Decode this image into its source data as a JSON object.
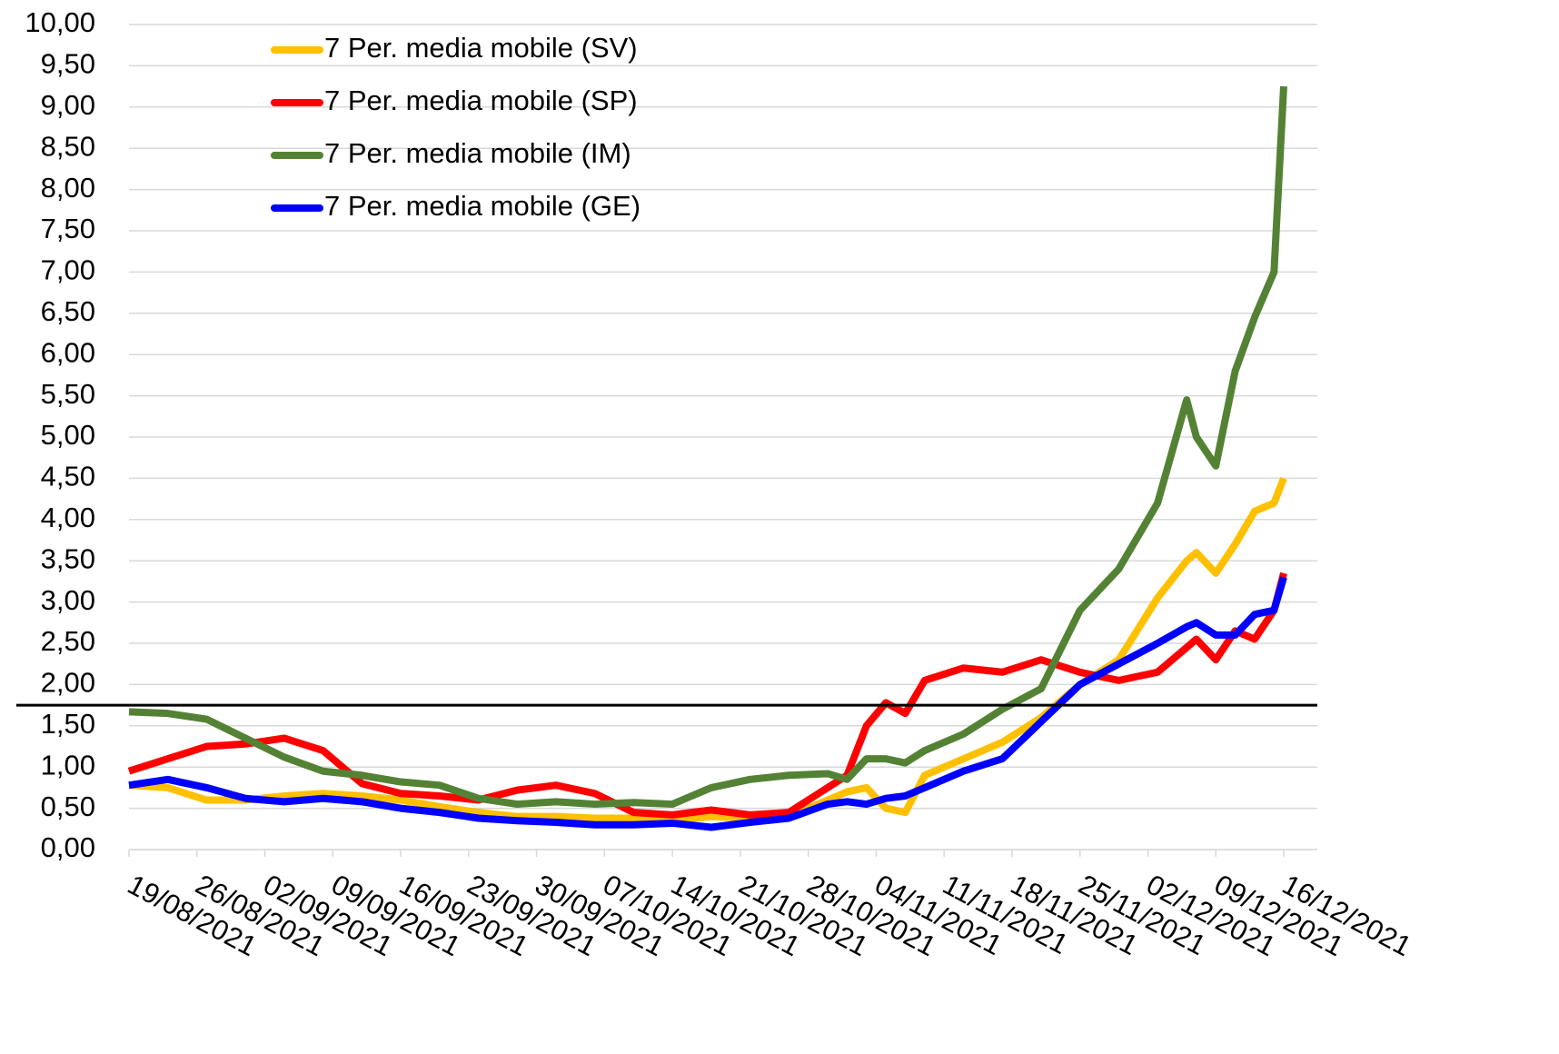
{
  "chart_data": {
    "type": "line",
    "x": [
      "19/08/2021",
      "23/08/2021",
      "27/08/2021",
      "31/08/2021",
      "04/09/2021",
      "08/09/2021",
      "12/09/2021",
      "16/09/2021",
      "20/09/2021",
      "24/09/2021",
      "28/09/2021",
      "02/10/2021",
      "06/10/2021",
      "10/10/2021",
      "14/10/2021",
      "18/10/2021",
      "22/10/2021",
      "26/10/2021",
      "30/10/2021",
      "01/11/2021",
      "03/11/2021",
      "05/11/2021",
      "07/11/2021",
      "09/11/2021",
      "13/11/2021",
      "17/11/2021",
      "21/11/2021",
      "25/11/2021",
      "29/11/2021",
      "03/12/2021",
      "06/12/2021",
      "07/12/2021",
      "09/12/2021",
      "11/12/2021",
      "13/12/2021",
      "15/12/2021",
      "16/12/2021"
    ],
    "series": [
      {
        "name": "7 Per. media mobile (SV)",
        "color": "#ffc000",
        "values": [
          0.78,
          0.75,
          0.6,
          0.6,
          0.65,
          0.68,
          0.65,
          0.6,
          0.52,
          0.45,
          0.4,
          0.4,
          0.38,
          0.38,
          0.35,
          0.4,
          0.38,
          0.4,
          0.6,
          0.7,
          0.75,
          0.5,
          0.45,
          0.9,
          1.1,
          1.3,
          1.6,
          2.0,
          2.3,
          3.05,
          3.5,
          3.6,
          3.35,
          3.7,
          4.1,
          4.2,
          4.5
        ]
      },
      {
        "name": "7 Per. media mobile (SP)",
        "color": "#ff0000",
        "values": [
          0.95,
          1.1,
          1.25,
          1.28,
          1.35,
          1.2,
          0.8,
          0.68,
          0.65,
          0.6,
          0.72,
          0.78,
          0.68,
          0.45,
          0.42,
          0.48,
          0.42,
          0.45,
          0.75,
          0.9,
          1.5,
          1.78,
          1.65,
          2.05,
          2.2,
          2.15,
          2.3,
          2.15,
          2.05,
          2.15,
          2.45,
          2.55,
          2.3,
          2.65,
          2.55,
          2.9,
          3.35
        ]
      },
      {
        "name": "7 Per. media mobile (IM)",
        "color": "#548235",
        "values": [
          1.67,
          1.65,
          1.58,
          1.35,
          1.12,
          0.95,
          0.9,
          0.82,
          0.78,
          0.62,
          0.55,
          0.58,
          0.55,
          0.57,
          0.55,
          0.75,
          0.85,
          0.9,
          0.92,
          0.85,
          1.1,
          1.1,
          1.05,
          1.2,
          1.4,
          1.7,
          1.95,
          2.9,
          3.4,
          4.2,
          5.45,
          5.0,
          4.65,
          5.8,
          6.45,
          7.0,
          9.25
        ]
      },
      {
        "name": "7 Per. media mobile (GE)",
        "color": "#0000ff",
        "values": [
          0.78,
          0.85,
          0.75,
          0.62,
          0.58,
          0.62,
          0.58,
          0.5,
          0.45,
          0.38,
          0.35,
          0.33,
          0.3,
          0.3,
          0.32,
          0.27,
          0.33,
          0.38,
          0.55,
          0.58,
          0.55,
          0.62,
          0.65,
          0.75,
          0.95,
          1.1,
          1.55,
          2.0,
          2.25,
          2.5,
          2.7,
          2.75,
          2.6,
          2.6,
          2.85,
          2.9,
          3.3
        ]
      }
    ],
    "xlim": [
      "19/08/2021",
      "16/12/2021"
    ],
    "xticks": [
      "19/08/2021",
      "26/08/2021",
      "02/09/2021",
      "09/09/2021",
      "16/09/2021",
      "23/09/2021",
      "30/09/2021",
      "07/10/2021",
      "14/10/2021",
      "21/10/2021",
      "28/10/2021",
      "04/11/2021",
      "11/11/2021",
      "18/11/2021",
      "25/11/2021",
      "02/12/2021",
      "09/12/2021",
      "16/12/2021"
    ],
    "ylim": [
      0,
      10
    ],
    "yticks": [
      {
        "value": 0,
        "label": "0,00"
      },
      {
        "value": 0.5,
        "label": "0,50"
      },
      {
        "value": 1,
        "label": "1,00"
      },
      {
        "value": 1.5,
        "label": "1,50"
      },
      {
        "value": 2,
        "label": "2,00"
      },
      {
        "value": 2.5,
        "label": "2,50"
      },
      {
        "value": 3,
        "label": "3,00"
      },
      {
        "value": 3.5,
        "label": "3,50"
      },
      {
        "value": 4,
        "label": "4,00"
      },
      {
        "value": 4.5,
        "label": "4,50"
      },
      {
        "value": 5,
        "label": "5,00"
      },
      {
        "value": 5.5,
        "label": "5,50"
      },
      {
        "value": 6,
        "label": "6,00"
      },
      {
        "value": 6.5,
        "label": "6,50"
      },
      {
        "value": 7,
        "label": "7,00"
      },
      {
        "value": 7.5,
        "label": "7,50"
      },
      {
        "value": 8,
        "label": "8,00"
      },
      {
        "value": 8.5,
        "label": "8,50"
      },
      {
        "value": 9,
        "label": "9,00"
      },
      {
        "value": 9.5,
        "label": "9,50"
      },
      {
        "value": 10,
        "label": "10,00"
      }
    ],
    "reference_line": 1.75,
    "grid": true,
    "legend": "top-left"
  }
}
